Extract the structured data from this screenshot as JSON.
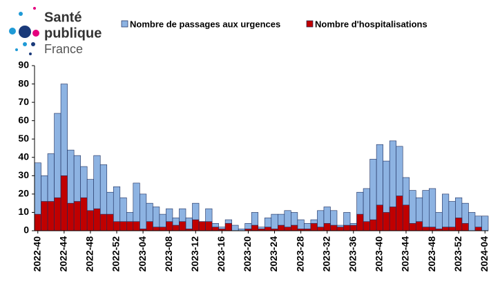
{
  "logo": {
    "line1": "Santé",
    "line2": "publique",
    "line3": "France"
  },
  "chart_data": {
    "type": "bar",
    "overlay": true,
    "categories": [
      "2022-40",
      null,
      null,
      null,
      "2022-44",
      null,
      null,
      null,
      "2022-48",
      null,
      null,
      null,
      "2022-52",
      null,
      null,
      null,
      "2023-04",
      null,
      null,
      null,
      "2023-08",
      null,
      null,
      null,
      "2023-12",
      null,
      null,
      null,
      "2023-16",
      null,
      null,
      null,
      "2023-20",
      null,
      null,
      null,
      "2023-24",
      null,
      null,
      null,
      "2023-28",
      null,
      null,
      null,
      "2023-32",
      null,
      null,
      null,
      "2023-36",
      null,
      null,
      null,
      "2023-40",
      null,
      null,
      null,
      "2023-44",
      null,
      null,
      null,
      "2023-48",
      null,
      null,
      null,
      "2023-52",
      null,
      null,
      null,
      "2024-04"
    ],
    "series": [
      {
        "name": "Nombre de passages aux urgences",
        "color": "#8db3e2",
        "values": [
          37,
          30,
          42,
          64,
          80,
          44,
          41,
          35,
          28,
          41,
          36,
          21,
          24,
          18,
          10,
          26,
          20,
          15,
          13,
          9,
          12,
          7,
          12,
          7,
          15,
          5,
          12,
          4,
          2,
          6,
          3,
          1,
          4,
          10,
          2,
          7,
          9,
          9,
          11,
          10,
          6,
          4,
          6,
          11,
          13,
          11,
          3,
          10,
          4,
          21,
          23,
          39,
          47,
          38,
          49,
          46,
          29,
          22,
          18,
          22,
          23,
          10,
          20,
          16,
          18,
          15,
          10,
          8,
          8
        ]
      },
      {
        "name": "Nombre d'hospitalisations",
        "color": "#c00000",
        "values": [
          9,
          16,
          16,
          18,
          30,
          15,
          16,
          18,
          11,
          12,
          9,
          9,
          5,
          5,
          5,
          5,
          1,
          5,
          2,
          2,
          5,
          3,
          5,
          1,
          6,
          5,
          5,
          2,
          1,
          4,
          0,
          0,
          1,
          3,
          1,
          2,
          1,
          3,
          2,
          3,
          1,
          1,
          4,
          2,
          4,
          3,
          2,
          3,
          3,
          9,
          5,
          6,
          14,
          10,
          13,
          19,
          14,
          4,
          5,
          2,
          2,
          1,
          2,
          2,
          7,
          4,
          0,
          2,
          0
        ]
      }
    ],
    "ylim": [
      0,
      90
    ],
    "yticks": [
      0,
      10,
      20,
      30,
      40,
      50,
      60,
      70,
      80,
      90
    ],
    "grid": false
  }
}
